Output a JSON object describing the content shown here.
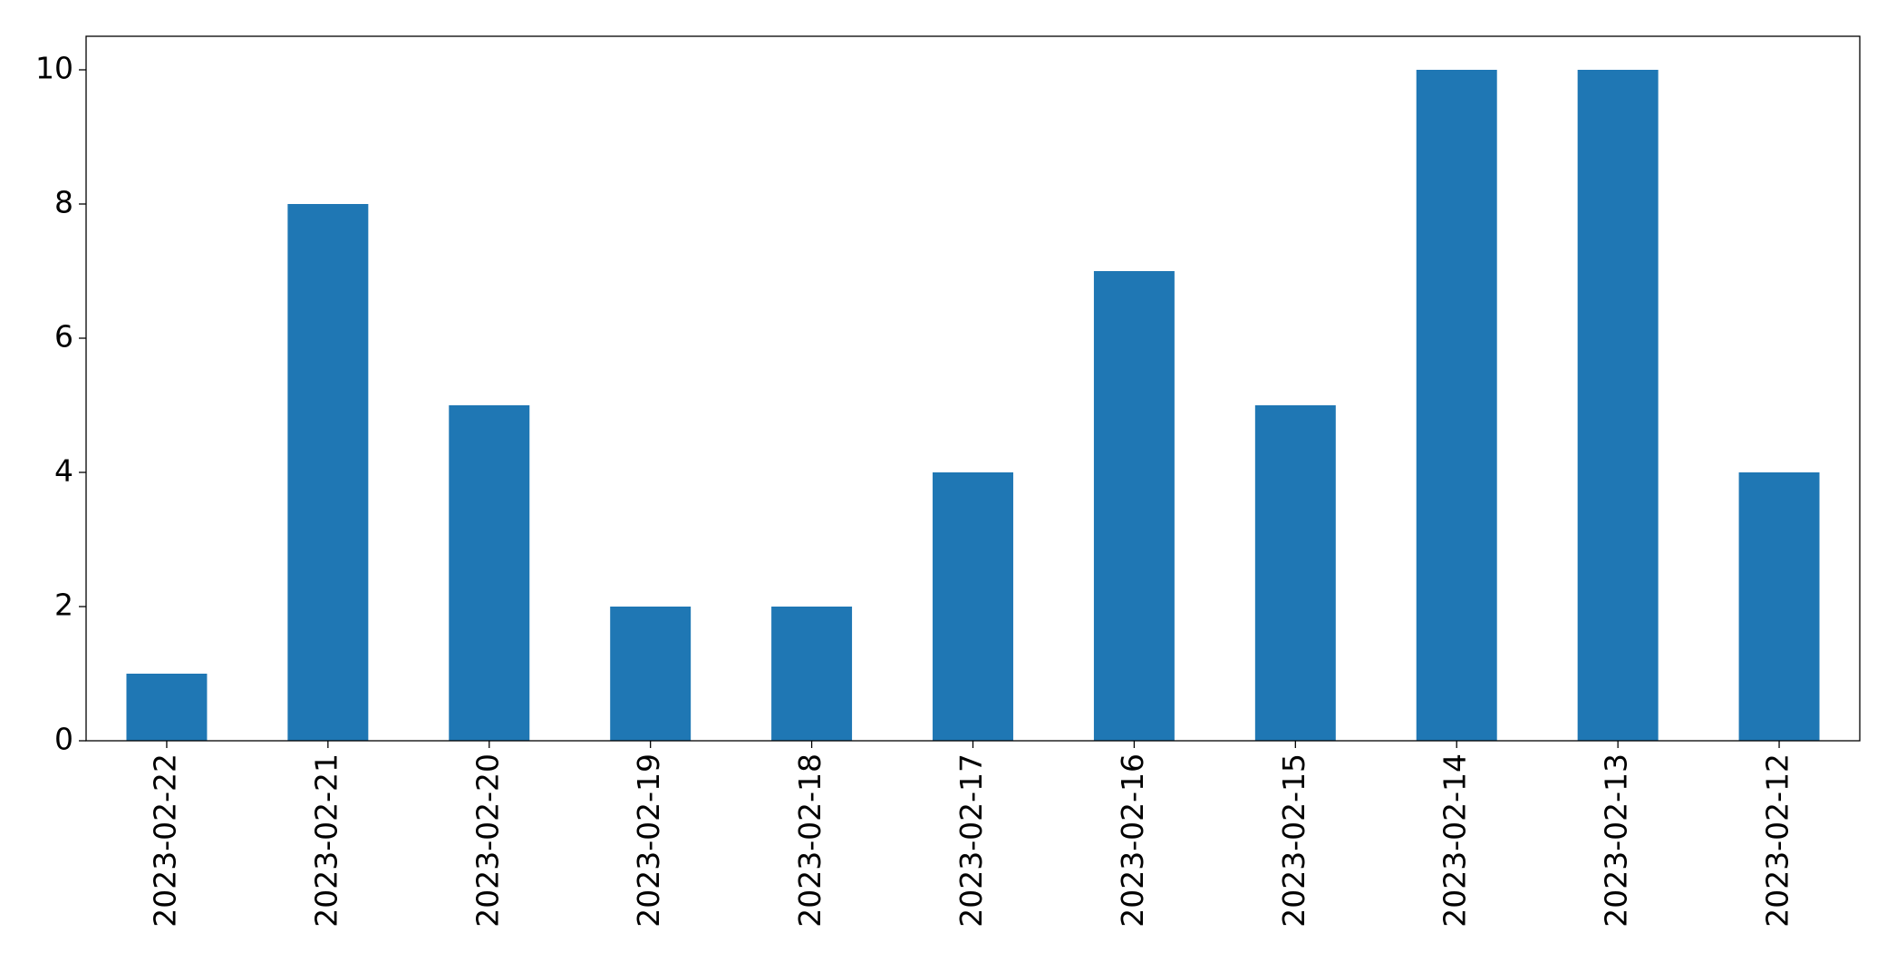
{
  "chart_data": {
    "type": "bar",
    "categories": [
      "2023-02-22",
      "2023-02-21",
      "2023-02-20",
      "2023-02-19",
      "2023-02-18",
      "2023-02-17",
      "2023-02-16",
      "2023-02-15",
      "2023-02-14",
      "2023-02-13",
      "2023-02-12"
    ],
    "values": [
      1,
      8,
      5,
      2,
      2,
      4,
      7,
      5,
      10,
      10,
      4
    ],
    "color": "#1f77b4",
    "ylim": [
      0,
      10.5
    ],
    "yticks": [
      0,
      2,
      4,
      6,
      8,
      10
    ],
    "grid": false
  }
}
